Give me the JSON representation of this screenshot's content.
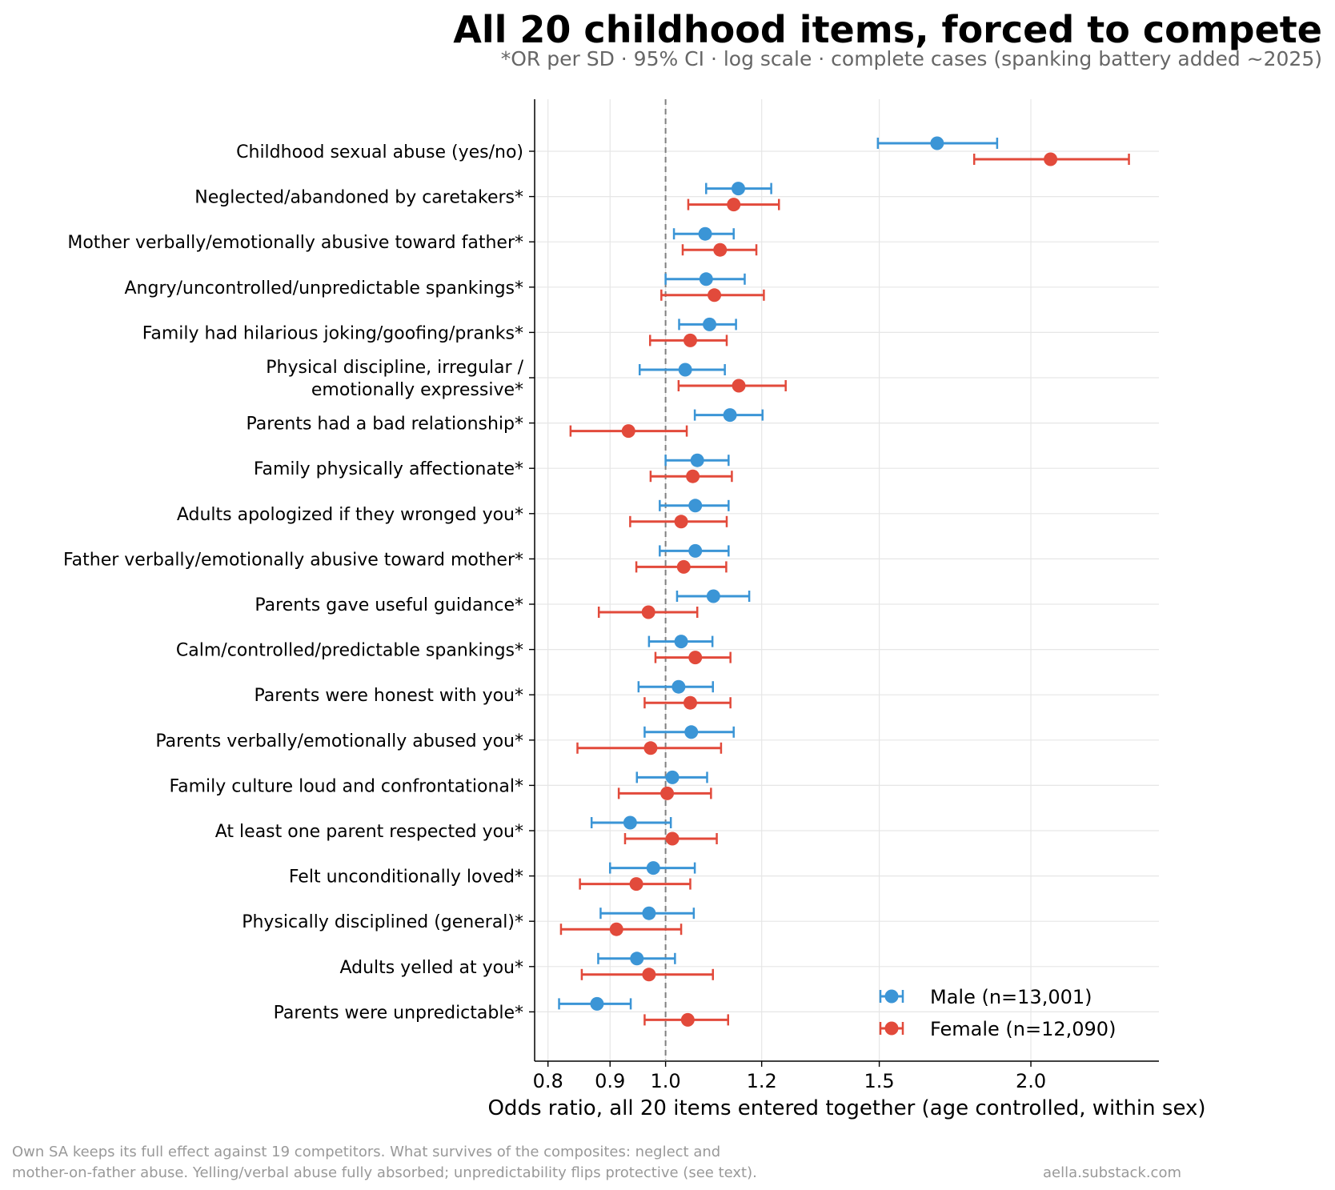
{
  "chart_data": {
    "type": "scatter",
    "title": "All 20 childhood items, forced to compete",
    "subtitle": "*OR per SD · 95% CI · log scale · complete cases (spanking battery added ~2025)",
    "xlabel": "Odds ratio, all 20 items entered together (age controlled, within sex)",
    "ylabel": "",
    "x_scale": "log",
    "xlim": [
      0.78,
      2.55
    ],
    "x_ticks": [
      0.8,
      0.9,
      1.0,
      1.2,
      1.5,
      2.0
    ],
    "x_tick_labels": [
      "0.8",
      "0.9",
      "1.0",
      "1.2",
      "1.5",
      "2.0"
    ],
    "reference_line": 1.0,
    "grid": true,
    "legend_position": "lower-right",
    "categories": [
      "Childhood sexual abuse (yes/no)",
      "Neglected/abandoned by caretakers*",
      "Mother verbally/emotionally abusive toward father*",
      "Angry/uncontrolled/unpredictable spankings*",
      "Family had hilarious joking/goofing/pranks*",
      "Physical discipline, irregular /\nemotionally expressive*",
      "Parents had a bad relationship*",
      "Family physically affectionate*",
      "Adults apologized if they wronged you*",
      "Father verbally/emotionally abusive toward mother*",
      "Parents gave useful guidance*",
      "Calm/controlled/predictable spankings*",
      "Parents were honest with you*",
      "Parents verbally/emotionally abused you*",
      "Family culture loud and confrontational*",
      "At least one parent respected you*",
      "Felt unconditionally loved*",
      "Physically disciplined (general)*",
      "Adults yelled at you*",
      "Parents were unpredictable*"
    ],
    "series": [
      {
        "name": "Male (n=13,001)",
        "color": "#3b95d6",
        "or": [
          1.674,
          1.148,
          1.078,
          1.08,
          1.087,
          1.038,
          1.13,
          1.062,
          1.058,
          1.058,
          1.095,
          1.03,
          1.025,
          1.05,
          1.013,
          0.935,
          0.977,
          0.969,
          0.947,
          0.878
        ],
        "low": [
          1.496,
          1.08,
          1.016,
          1.0,
          1.026,
          0.952,
          1.057,
          1.0,
          0.989,
          0.989,
          1.022,
          0.969,
          0.95,
          0.961,
          0.947,
          0.869,
          0.9,
          0.884,
          0.88,
          0.817
        ],
        "high": [
          1.876,
          1.222,
          1.138,
          1.162,
          1.143,
          1.119,
          1.202,
          1.127,
          1.127,
          1.127,
          1.172,
          1.093,
          1.094,
          1.138,
          1.082,
          1.01,
          1.057,
          1.055,
          1.018,
          0.936
        ]
      },
      {
        "name": "Female (n=12,090)",
        "color": "#e24a3b",
        "or": [
          2.076,
          1.138,
          1.109,
          1.097,
          1.048,
          1.149,
          0.932,
          1.053,
          1.03,
          1.035,
          0.968,
          1.058,
          1.048,
          0.972,
          1.003,
          1.013,
          0.946,
          0.911,
          0.969,
          1.043
        ],
        "low": [
          1.796,
          1.044,
          1.033,
          0.992,
          0.971,
          1.025,
          0.835,
          0.972,
          0.935,
          0.946,
          0.881,
          0.981,
          0.961,
          0.846,
          0.915,
          0.926,
          0.85,
          0.82,
          0.853,
          0.961
        ],
        "high": [
          2.409,
          1.24,
          1.188,
          1.205,
          1.123,
          1.256,
          1.041,
          1.134,
          1.123,
          1.122,
          1.062,
          1.131,
          1.131,
          1.111,
          1.09,
          1.102,
          1.048,
          1.03,
          1.094,
          1.126
        ]
      }
    ],
    "footer_note": [
      "Own SA keeps its full effect against 19 competitors. What survives of the composites: neglect and",
      "mother-on-father abuse. Yelling/verbal abuse fully absorbed; unpredictability flips protective (see text)."
    ],
    "footer_credit": "aella.substack.com"
  }
}
